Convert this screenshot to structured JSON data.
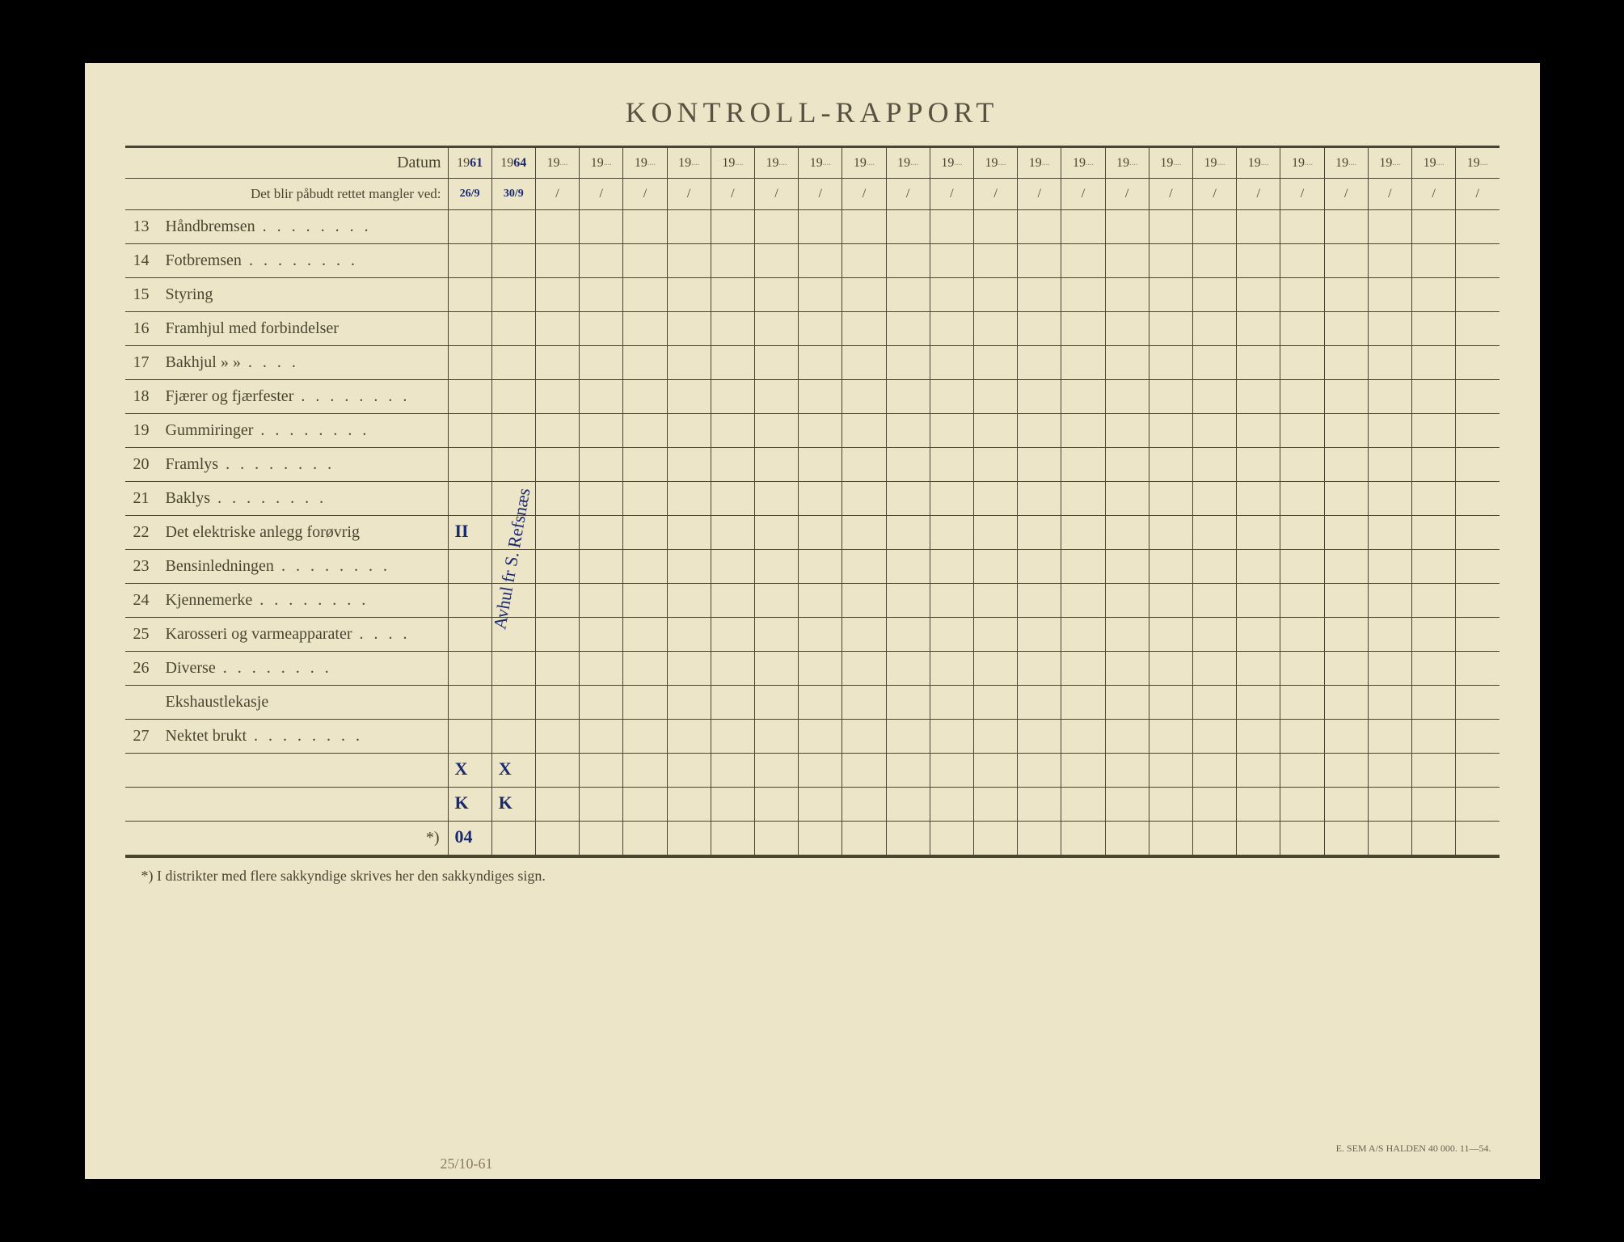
{
  "title": "KONTROLL-RAPPORT",
  "header": {
    "datum_label": "Datum",
    "sub_label": "Det blir påbudt rettet mangler ved:",
    "year_prefix": "19",
    "slash": "/",
    "col_count": 24,
    "handwritten_years": [
      "61",
      "64"
    ],
    "handwritten_dates": [
      "26/9",
      "30/9"
    ]
  },
  "rows": [
    {
      "num": "13",
      "label": "Håndbremsen",
      "dots": true
    },
    {
      "num": "14",
      "label": "Fotbremsen",
      "dots": true
    },
    {
      "num": "15",
      "label": "Styring",
      "dots": false
    },
    {
      "num": "16",
      "label": "Framhjul med forbindelser",
      "dots": false
    },
    {
      "num": "17",
      "label": "Bakhjul       »         »",
      "dots": false,
      "small_dots": true
    },
    {
      "num": "18",
      "label": "Fjærer og fjærfester",
      "dots": true
    },
    {
      "num": "19",
      "label": "Gummiringer",
      "dots": true
    },
    {
      "num": "20",
      "label": "Framlys",
      "dots": true
    },
    {
      "num": "21",
      "label": "Baklys",
      "dots": true
    },
    {
      "num": "22",
      "label": "Det elektriske anlegg forøvrig",
      "dots": false,
      "cell_mark": "II"
    },
    {
      "num": "23",
      "label": "Bensinledningen",
      "dots": true
    },
    {
      "num": "24",
      "label": "Kjennemerke",
      "dots": true
    },
    {
      "num": "25",
      "label": "Karosseri og varmeapparater",
      "dots": false,
      "small_dots": true
    },
    {
      "num": "26",
      "label": "Diverse",
      "dots": true
    },
    {
      "num": "",
      "label": "Ekshaustlekasje",
      "dots": false
    },
    {
      "num": "27",
      "label": "Nektet brukt",
      "dots": true
    },
    {
      "num": "",
      "label": "",
      "dots": false,
      "marks": [
        "X",
        "X"
      ]
    },
    {
      "num": "",
      "label": "",
      "dots": false,
      "marks": [
        "K",
        "K"
      ]
    },
    {
      "num": "",
      "label": "*)",
      "dots": false,
      "align_right": true,
      "marks": [
        "04",
        ""
      ]
    }
  ],
  "vertical_handwriting": "Avhul fr S. Refsnæs",
  "footnote": "*) I distrikter med flere sakkyndige skrives her den sakkyndiges sign.",
  "printer": "E. SEM A/S HALDEN   40 000.   11—54.",
  "below_date": "25/10-61"
}
